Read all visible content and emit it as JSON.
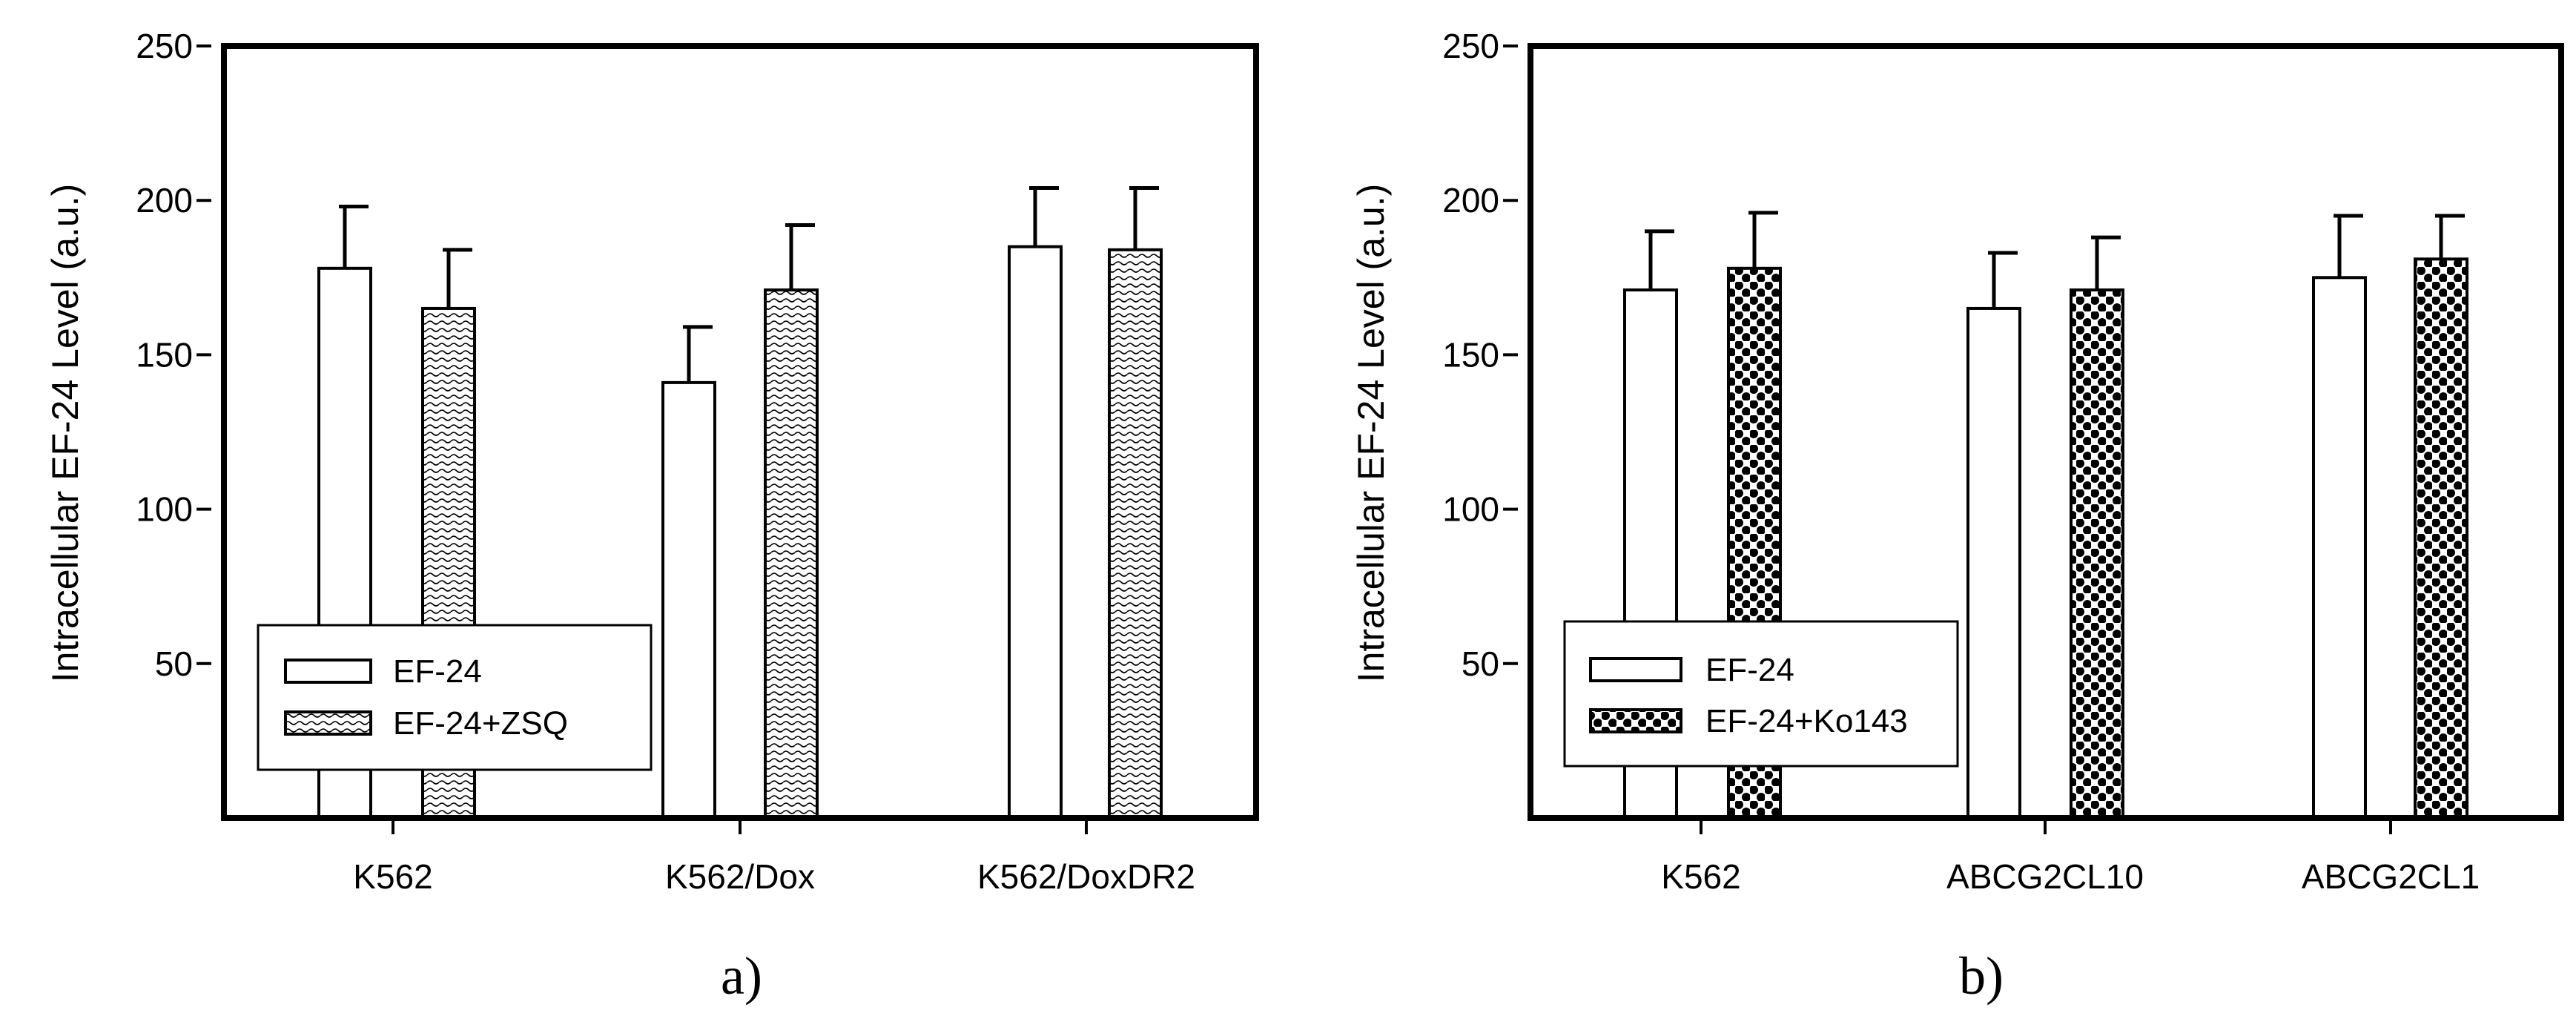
{
  "chart_data": [
    {
      "type": "bar",
      "panel_label": "a)",
      "ylabel": "Intracellular EF-24 Level (a.u.)",
      "xlabel": "",
      "ylim": [
        0,
        250
      ],
      "yticks": [
        50,
        100,
        150,
        200,
        250
      ],
      "categories": [
        "K562",
        "K562/Dox",
        "K562/DoxDR2"
      ],
      "series": [
        {
          "name": "EF-24",
          "values": [
            178,
            141,
            185
          ],
          "errors": [
            20,
            18,
            19
          ],
          "fill": "white"
        },
        {
          "name": "EF-24+ZSQ",
          "values": [
            165,
            171,
            184
          ],
          "errors": [
            19,
            21,
            20
          ],
          "fill": "wavy"
        }
      ],
      "legend_position": "bottom-left",
      "grid": false
    },
    {
      "type": "bar",
      "panel_label": "b)",
      "ylabel": "Intracellular EF-24 Level (a.u.)",
      "xlabel": "",
      "ylim": [
        0,
        250
      ],
      "yticks": [
        50,
        100,
        150,
        200,
        250
      ],
      "categories": [
        "K562",
        "ABCG2CL10",
        "ABCG2CL1"
      ],
      "series": [
        {
          "name": "EF-24",
          "values": [
            171,
            165,
            175
          ],
          "errors": [
            19,
            18,
            20
          ],
          "fill": "white"
        },
        {
          "name": "EF-24+Ko143",
          "values": [
            178,
            171,
            181
          ],
          "errors": [
            18,
            17,
            14
          ],
          "fill": "checker"
        }
      ],
      "legend_position": "bottom-left",
      "grid": false
    }
  ]
}
